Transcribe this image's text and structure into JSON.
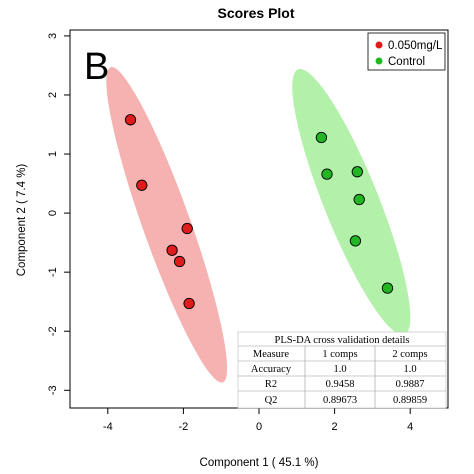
{
  "chart_data": {
    "type": "scatter",
    "title": "Scores Plot",
    "panel_letter": "B",
    "xlabel": "Component 1 ( 45.1 %)",
    "ylabel": "Component 2 ( 7.4 %)",
    "xlim": [
      -5.0,
      5.0
    ],
    "ylim": [
      -3.3,
      3.1
    ],
    "x_ticks": [
      -4,
      -2,
      0,
      2,
      4
    ],
    "y_ticks": [
      3,
      2,
      1,
      0,
      -1,
      -2,
      -3
    ],
    "grid": false,
    "legend_position": "top-right",
    "series": [
      {
        "name": "0.050mg/L",
        "color": "#e01b1b",
        "ellipse_color": "#f4a3a3",
        "x": [
          -3.4,
          -3.1,
          -1.9,
          -2.3,
          -2.1,
          -1.85
        ],
        "y": [
          1.58,
          0.47,
          -0.26,
          -0.63,
          -0.82,
          -1.53
        ]
      },
      {
        "name": "Control",
        "color": "#22b722",
        "ellipse_color": "#a6ee9c",
        "x": [
          1.65,
          1.8,
          2.6,
          2.65,
          2.55,
          3.4
        ],
        "y": [
          1.28,
          0.66,
          0.7,
          0.23,
          -0.47,
          -1.27
        ]
      }
    ],
    "cv_table": {
      "title": "PLS-DA cross validation details",
      "headers": [
        "Measure",
        "1 comps",
        "2 comps"
      ],
      "rows": [
        [
          "Accuracy",
          "1.0",
          "1.0"
        ],
        [
          "R2",
          "0.9458",
          "0.9887"
        ],
        [
          "Q2",
          "0.89673",
          "0.89859"
        ]
      ]
    }
  }
}
